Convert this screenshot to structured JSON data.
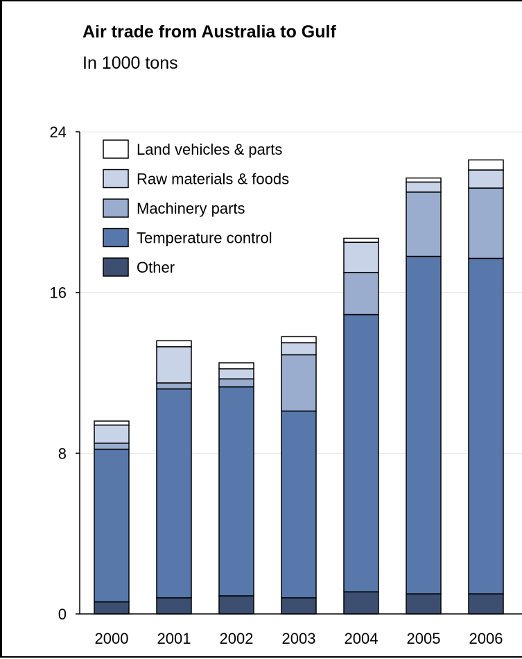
{
  "chart_data": {
    "type": "bar",
    "stacked": true,
    "title": "Air trade from Australia to Gulf",
    "subtitle": "In 1000 tons",
    "xlabel": "",
    "ylabel": "",
    "categories": [
      "2000",
      "2001",
      "2002",
      "2003",
      "2004",
      "2005",
      "2006"
    ],
    "ylim": [
      0,
      24
    ],
    "yticks": [
      0,
      8,
      16,
      24
    ],
    "grid": true,
    "legend_position": "top-left",
    "series": [
      {
        "name": "Other",
        "color": "#3d4f70",
        "values": [
          0.6,
          0.8,
          0.9,
          0.8,
          1.1,
          1.0,
          1.0
        ]
      },
      {
        "name": "Temperature control",
        "color": "#5878ab",
        "values": [
          7.6,
          10.4,
          10.4,
          9.3,
          13.8,
          16.8,
          16.7
        ]
      },
      {
        "name": "Machinery parts",
        "color": "#9aadcf",
        "values": [
          0.3,
          0.3,
          0.4,
          2.8,
          2.1,
          3.2,
          3.5
        ]
      },
      {
        "name": "Raw materials & foods",
        "color": "#c9d3e8",
        "values": [
          0.9,
          1.8,
          0.5,
          0.6,
          1.5,
          0.5,
          0.9
        ]
      },
      {
        "name": "Land vehicles & parts",
        "color": "#ffffff",
        "values": [
          0.2,
          0.3,
          0.3,
          0.3,
          0.2,
          0.2,
          0.5
        ]
      }
    ]
  }
}
